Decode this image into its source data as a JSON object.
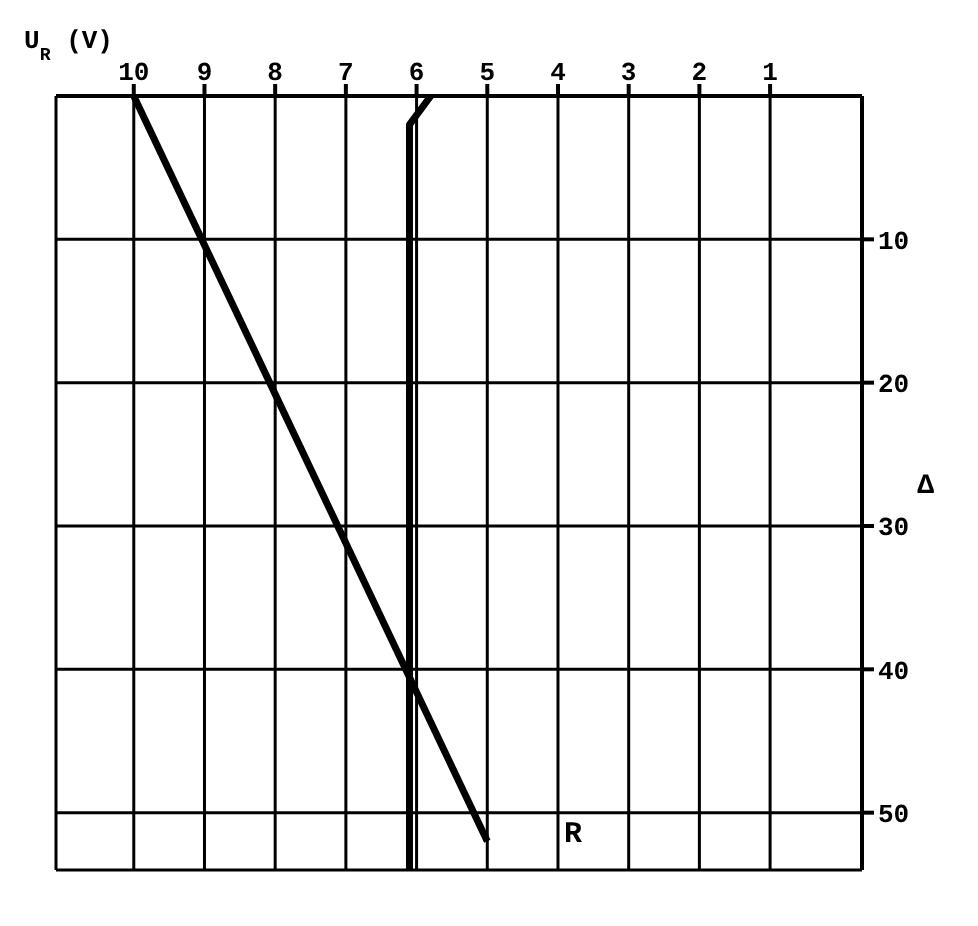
{
  "chart_data": {
    "type": "line",
    "xlabel": "U$_{R}$ (V)",
    "ylabel": "Δ",
    "xlim": [
      11.1,
      -0.3
    ],
    "xticks": [
      10,
      9,
      8,
      7,
      6,
      5,
      4,
      3,
      2,
      1
    ],
    "ylim": [
      54,
      0
    ],
    "yticks": [
      10,
      20,
      30,
      40,
      50
    ],
    "series": [
      {
        "color": "#000000",
        "x": [
          10,
          5
        ],
        "values": [
          0,
          52
        ]
      },
      {
        "color": "#000000",
        "x": [
          5.8,
          6.1,
          6.1
        ],
        "values": [
          0,
          2,
          54
        ]
      }
    ],
    "annotations": [
      "R"
    ],
    "grid": true,
    "legend": false,
    "marker": "none",
    "line_style": "solid"
  }
}
